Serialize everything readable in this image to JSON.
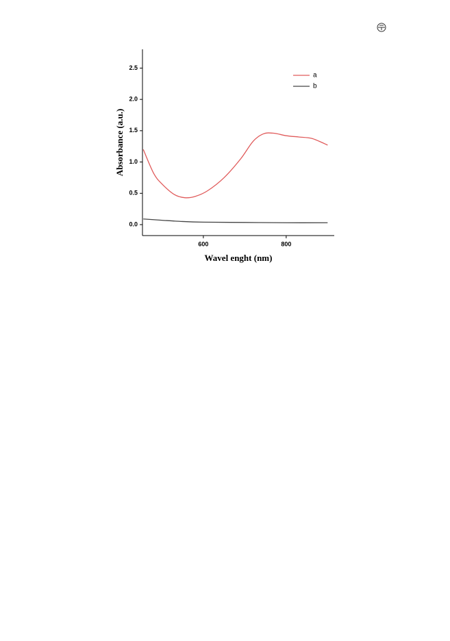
{
  "chart_data": {
    "type": "line",
    "xlabel": "Wavel enght (nm)",
    "ylabel": "Absorbance (a.u.)",
    "xlim": [
      453,
      916
    ],
    "ylim": [
      -0.175,
      2.8
    ],
    "xticks": [
      600,
      800
    ],
    "yticks": [
      {
        "value": 0,
        "label": "0.0"
      },
      0.5,
      {
        "value": 1,
        "label": "1.0"
      },
      1.5,
      {
        "value": 2,
        "label": "2.0"
      },
      2.5
    ],
    "series": [
      {
        "name": "a",
        "color": "#e05a5a",
        "x": [
          455,
          480,
          500,
          530,
          555,
          580,
          610,
          650,
          690,
          720,
          745,
          770,
          800,
          830,
          860,
          880,
          900
        ],
        "values": [
          1.2,
          0.82,
          0.65,
          0.48,
          0.43,
          0.45,
          0.54,
          0.75,
          1.05,
          1.33,
          1.45,
          1.46,
          1.42,
          1.4,
          1.38,
          1.33,
          1.27
        ]
      },
      {
        "name": "b",
        "color": "#444444",
        "x": [
          455,
          500,
          550,
          600,
          700,
          800,
          900
        ],
        "values": [
          0.09,
          0.07,
          0.05,
          0.04,
          0.035,
          0.03,
          0.03
        ]
      }
    ]
  }
}
